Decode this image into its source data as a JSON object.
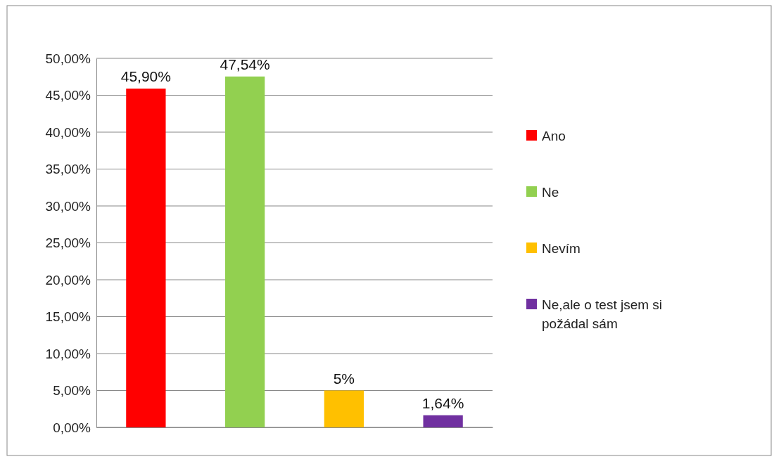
{
  "chart_data": {
    "type": "bar",
    "categories": [
      null,
      null,
      null,
      null
    ],
    "stacked": true,
    "series": [
      {
        "name": "Ano",
        "color": "#ff0000",
        "values": [
          45.9,
          null,
          null,
          null
        ],
        "value_labels": [
          "45,90%",
          null,
          null,
          null
        ]
      },
      {
        "name": "Ne",
        "color": "#92d050",
        "values": [
          null,
          47.54,
          null,
          null
        ],
        "value_labels": [
          null,
          "47,54%",
          null,
          null
        ]
      },
      {
        "name": "Nevím",
        "color": "#ffc000",
        "values": [
          null,
          null,
          5,
          null
        ],
        "value_labels": [
          null,
          null,
          "5%",
          null
        ]
      },
      {
        "name": "Ne,ale o test jsem si požádal sám",
        "color": "#7030a0",
        "values": [
          null,
          null,
          null,
          1.64
        ],
        "value_labels": [
          null,
          null,
          null,
          "1,64%"
        ]
      }
    ],
    "ylim": [
      0,
      50
    ],
    "yticks": [
      {
        "value": 0,
        "label": "0,00%"
      },
      {
        "value": 5,
        "label": "5,00%"
      },
      {
        "value": 10,
        "label": "10,00%"
      },
      {
        "value": 15,
        "label": "15,00%"
      },
      {
        "value": 20,
        "label": "20,00%"
      },
      {
        "value": 25,
        "label": "25,00%"
      },
      {
        "value": 30,
        "label": "30,00%"
      },
      {
        "value": 35,
        "label": "35,00%"
      },
      {
        "value": 40,
        "label": "40,00%"
      },
      {
        "value": 45,
        "label": "45,00%"
      },
      {
        "value": 50,
        "label": "50,00%"
      }
    ],
    "grid": "y",
    "legend": "right"
  }
}
